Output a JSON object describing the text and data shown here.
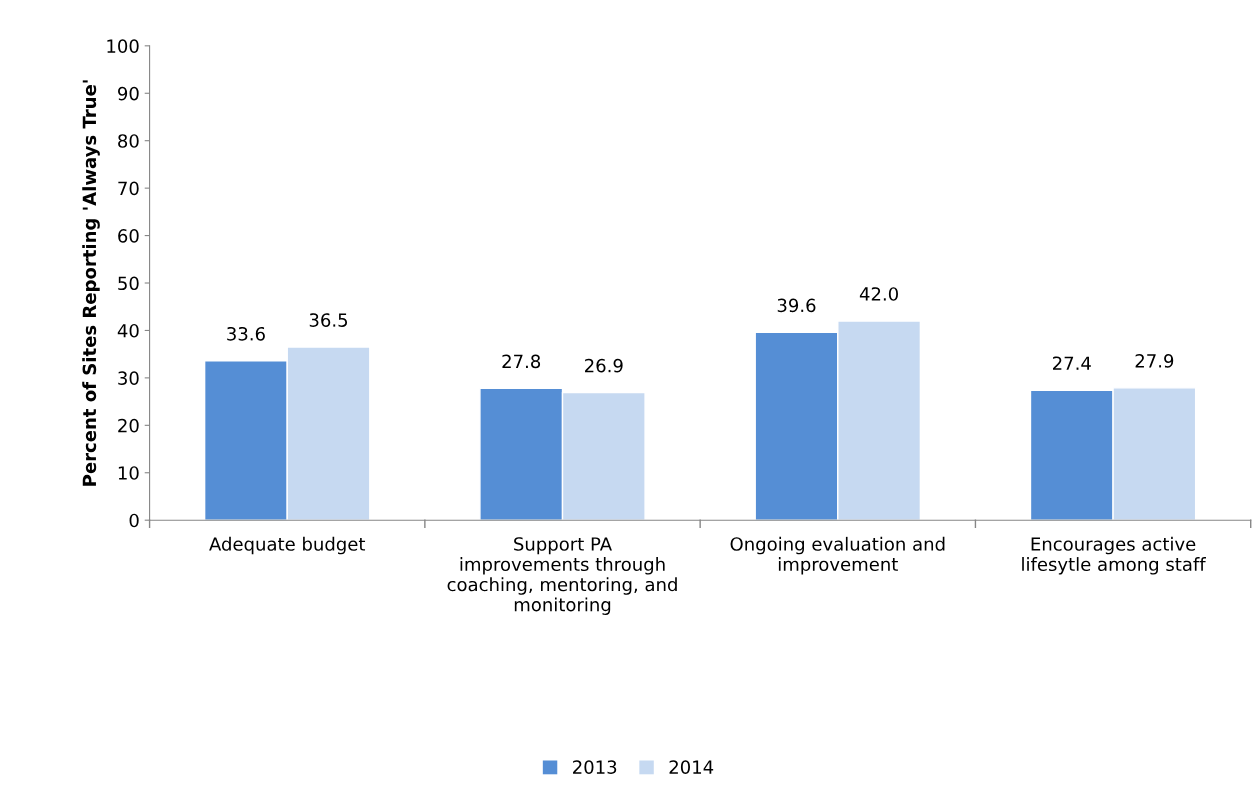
{
  "chart_data": {
    "type": "bar",
    "ylabel": "Percent of Sites Reporting 'Always True'",
    "categories": [
      "Adequate budget",
      "Support PA\nimprovements through\ncoaching, mentoring, and\nmonitoring",
      "Ongoing evaluation and\nimprovement",
      "Encourages active\nlifesytle among staff"
    ],
    "series": [
      {
        "name": "2013",
        "color": "#558ed5",
        "values": [
          33.6,
          27.8,
          39.6,
          27.4
        ],
        "value_labels": [
          "33.6",
          "27.8",
          "39.6",
          "27.4"
        ]
      },
      {
        "name": "2014",
        "color": "#c6d9f1",
        "values": [
          36.5,
          26.9,
          42.0,
          27.9
        ],
        "value_labels": [
          "36.5",
          "26.9",
          "42.0",
          "27.9"
        ]
      }
    ],
    "ylim": [
      0,
      100
    ],
    "yticks": [
      0,
      10,
      20,
      30,
      40,
      50,
      60,
      70,
      80,
      90,
      100
    ],
    "grid": false,
    "legend": "bottom"
  }
}
